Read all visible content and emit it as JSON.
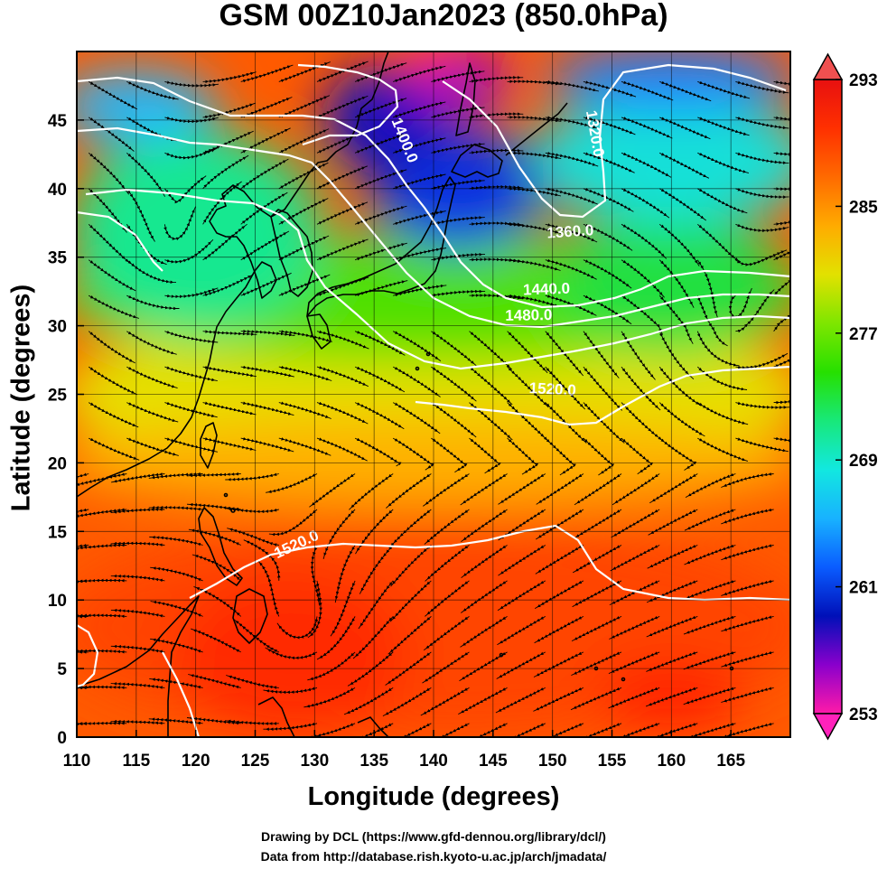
{
  "title": "GSM 00Z10Jan2023 (850.0hPa)",
  "credits": {
    "line1": "Drawing by DCL (https://www.gfd-dennou.org/library/dcl/)",
    "line2": "Data from http://database.rish.kyoto-u.ac.jp/arch/jmadata/"
  },
  "map": {
    "x_axis_title": "Longitude (degrees)",
    "y_axis_title": "Latitude  (degrees)",
    "lon_range": [
      110,
      170
    ],
    "lat_range": [
      0,
      50
    ],
    "lon_ticks": [
      "110",
      "115",
      "120",
      "125",
      "130",
      "135",
      "140",
      "145",
      "150",
      "155",
      "160",
      "165"
    ],
    "lat_ticks": [
      "0",
      "5",
      "10",
      "15",
      "20",
      "25",
      "30",
      "35",
      "40",
      "45"
    ],
    "shaded_field": "temperature",
    "overlay": "streamlines",
    "contour_labels": [
      {
        "text": "1400.0",
        "lon": 137.5,
        "lat": 43.5,
        "angle": 68
      },
      {
        "text": "1320.0",
        "lon": 153.5,
        "lat": 44,
        "angle": 80
      },
      {
        "text": "1360.0",
        "lon": 151.5,
        "lat": 36.8,
        "angle": -4
      },
      {
        "text": "1440.0",
        "lon": 149.5,
        "lat": 32.6,
        "angle": -2
      },
      {
        "text": "1480.0",
        "lon": 148,
        "lat": 30.7,
        "angle": -1
      },
      {
        "text": "1520.0",
        "lon": 150,
        "lat": 25.3,
        "angle": 3
      },
      {
        "text": "1520.0",
        "lon": 128.5,
        "lat": 14,
        "angle": -25
      }
    ]
  },
  "colorbar": {
    "labels": [
      "293",
      "285",
      "277",
      "269",
      "261",
      "253"
    ],
    "min": 253,
    "max": 293,
    "colors": [
      "#ff1aa8",
      "#8a00cc",
      "#0010b8",
      "#0a5cff",
      "#18b2ff",
      "#12e8e0",
      "#18e87a",
      "#26e000",
      "#7ee600",
      "#e2e100",
      "#ffab00",
      "#ff6a00",
      "#ff3000",
      "#e81010"
    ]
  }
}
